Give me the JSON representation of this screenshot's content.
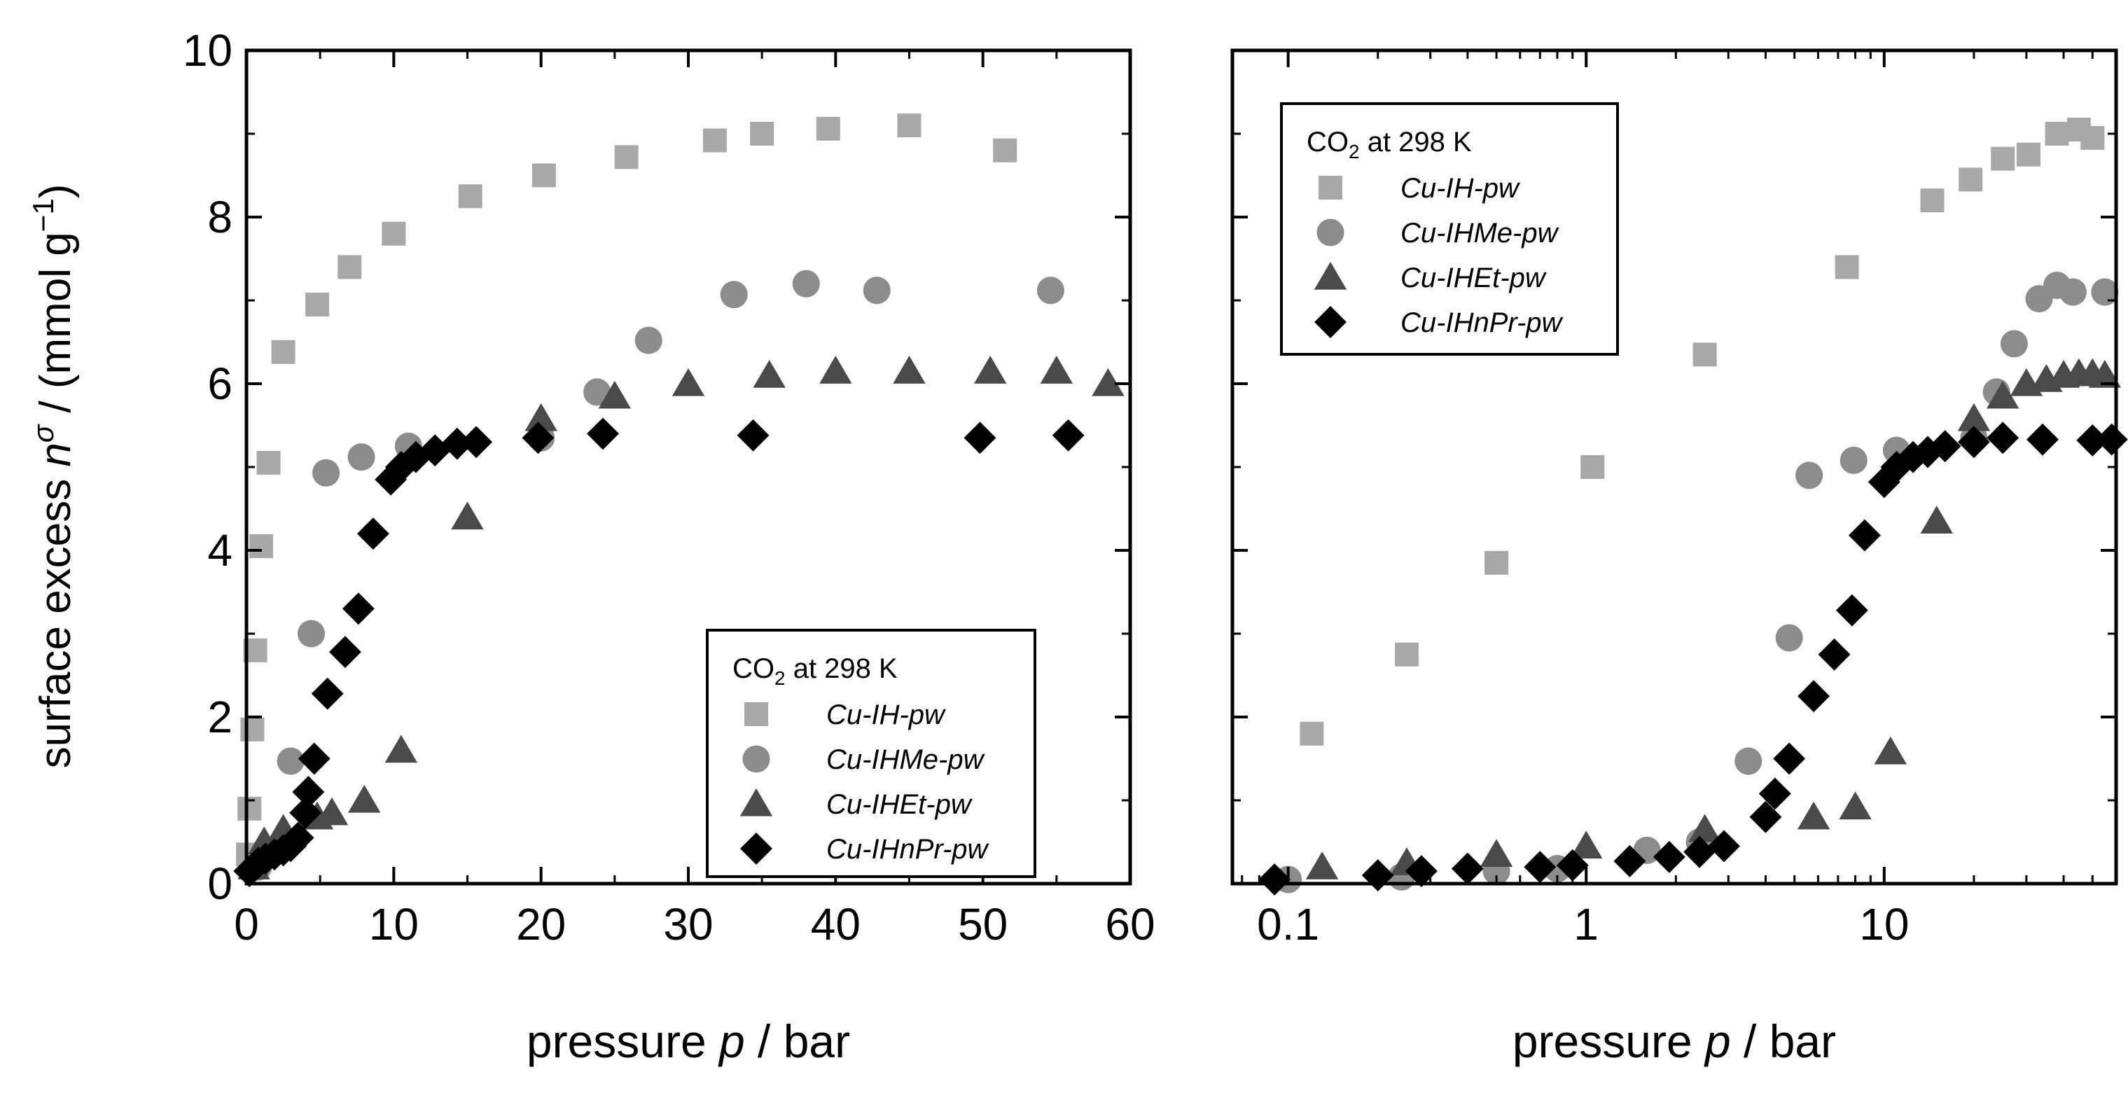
{
  "figure": {
    "y_axis_title_parts": [
      "surface excess ",
      "n",
      "σ",
      " / (mmol g",
      "−1",
      ")"
    ],
    "colors": {
      "Cu-IH-pw": "#a8a8a8",
      "Cu-IHMe-pw": "#8c8c8c",
      "Cu-IHEt-pw": "#4a4a4a",
      "Cu-IHnPr-pw": "#000000",
      "axis": "#000000"
    }
  },
  "chart_data": [
    {
      "type": "scatter",
      "name": "left-linear",
      "xscale": "linear",
      "xlim": [
        0,
        60
      ],
      "ylim": [
        0,
        10
      ],
      "xticks": [
        0,
        10,
        20,
        30,
        40,
        50,
        60
      ],
      "xtick_labels": [
        "0",
        "10",
        "20",
        "30",
        "40",
        "50",
        "60"
      ],
      "yticks": [
        0,
        2,
        4,
        6,
        8,
        10
      ],
      "ytick_labels": [
        "0",
        "2",
        "4",
        "6",
        "8",
        "10"
      ],
      "xlabel_parts": [
        "pressure ",
        "p",
        " / bar"
      ],
      "legend": {
        "title_parts": [
          "CO",
          "2",
          " at 298 K"
        ],
        "position": "bottom-right",
        "entries": [
          "Cu-IH-pw",
          "Cu-IHMe-pw",
          "Cu-IHEt-pw",
          "Cu-IHnPr-pw"
        ]
      },
      "series": [
        {
          "name": "Cu-IH-pw",
          "marker": "square",
          "x": [
            0.1,
            0.2,
            0.4,
            0.6,
            1.0,
            1.5,
            2.5,
            4.8,
            7.0,
            10.0,
            15.2,
            20.2,
            25.8,
            31.8,
            35.0,
            39.5,
            45.0,
            51.5
          ],
          "y": [
            0.35,
            0.9,
            1.85,
            2.8,
            4.05,
            5.05,
            6.38,
            6.95,
            7.4,
            7.8,
            8.25,
            8.5,
            8.72,
            8.92,
            9.0,
            9.06,
            9.1,
            8.8
          ]
        },
        {
          "name": "Cu-IHMe-pw",
          "marker": "circle",
          "x": [
            0.8,
            3.0,
            4.4,
            5.4,
            7.8,
            11.0,
            20.0,
            23.8,
            27.3,
            33.1,
            38.0,
            42.8,
            54.6
          ],
          "y": [
            0.2,
            1.47,
            3.0,
            4.93,
            5.12,
            5.25,
            5.35,
            5.9,
            6.52,
            7.07,
            7.2,
            7.12,
            7.12
          ]
        },
        {
          "name": "Cu-IHEt-pw",
          "marker": "triangle",
          "x": [
            0.5,
            1.2,
            2.5,
            4.8,
            5.8,
            8.0,
            10.5,
            15.0,
            20.0,
            25.0,
            30.0,
            35.5,
            40.0,
            45.0,
            50.5,
            55.0,
            58.5
          ],
          "y": [
            0.2,
            0.5,
            0.65,
            0.8,
            0.85,
            1.0,
            1.6,
            4.4,
            5.58,
            5.85,
            6.0,
            6.1,
            6.15,
            6.15,
            6.15,
            6.15,
            6.0
          ]
        },
        {
          "name": "Cu-IHnPr-pw",
          "marker": "diamond",
          "x": [
            0.2,
            0.5,
            0.8,
            1.3,
            1.9,
            2.5,
            3.0,
            3.5,
            4.0,
            4.2,
            4.6,
            5.5,
            6.7,
            7.6,
            8.6,
            9.8,
            10.5,
            11.5,
            12.8,
            14.3,
            15.6,
            19.8,
            24.2,
            34.4,
            49.8,
            55.8
          ],
          "y": [
            0.15,
            0.2,
            0.25,
            0.3,
            0.35,
            0.4,
            0.45,
            0.55,
            0.85,
            1.1,
            1.5,
            2.28,
            2.78,
            3.3,
            4.2,
            4.85,
            5.0,
            5.12,
            5.2,
            5.28,
            5.3,
            5.35,
            5.4,
            5.38,
            5.35,
            5.38
          ]
        }
      ]
    },
    {
      "type": "scatter",
      "name": "right-log",
      "xscale": "log",
      "xlim": [
        0.065,
        60
      ],
      "ylim": [
        0,
        10
      ],
      "xticks": [
        0.1,
        1,
        10
      ],
      "xtick_labels": [
        "0.1",
        "1",
        "10"
      ],
      "yticks": [
        0,
        2,
        4,
        6,
        8,
        10
      ],
      "ytick_labels": [],
      "xlabel_parts": [
        "pressure ",
        "p",
        " / bar"
      ],
      "legend": {
        "title_parts": [
          "CO",
          "2",
          " at 298 K"
        ],
        "position": "top-left",
        "entries": [
          "Cu-IH-pw",
          "Cu-IHMe-pw",
          "Cu-IHEt-pw",
          "Cu-IHnPr-pw"
        ]
      },
      "series": [
        {
          "name": "Cu-IH-pw",
          "marker": "square",
          "x": [
            0.12,
            0.25,
            0.5,
            1.05,
            2.5,
            7.5,
            14.5,
            19.5,
            25.0,
            30.5,
            38.0,
            45.0,
            50.0
          ],
          "y": [
            1.8,
            2.75,
            3.85,
            5.0,
            6.35,
            7.4,
            8.2,
            8.45,
            8.7,
            8.75,
            9.0,
            9.05,
            8.95
          ]
        },
        {
          "name": "Cu-IHMe-pw",
          "marker": "circle",
          "x": [
            0.1,
            0.24,
            0.5,
            0.8,
            1.6,
            2.4,
            3.5,
            4.8,
            5.6,
            7.9,
            11.0,
            20.0,
            23.8,
            27.3,
            33.1,
            38.0,
            43.0,
            55.0
          ],
          "y": [
            0.05,
            0.08,
            0.15,
            0.18,
            0.4,
            0.5,
            1.47,
            2.95,
            4.9,
            5.08,
            5.2,
            5.35,
            5.9,
            6.48,
            7.02,
            7.18,
            7.1,
            7.1
          ]
        },
        {
          "name": "Cu-IHEt-pw",
          "marker": "triangle",
          "x": [
            0.13,
            0.25,
            0.5,
            1.0,
            2.5,
            5.8,
            8.0,
            10.5,
            15.0,
            20.0,
            25.0,
            30.0,
            35.0,
            40.0,
            45.0,
            50.0,
            55.0
          ],
          "y": [
            0.2,
            0.25,
            0.35,
            0.45,
            0.65,
            0.8,
            0.92,
            1.58,
            4.35,
            5.58,
            5.85,
            6.0,
            6.05,
            6.1,
            6.12,
            6.12,
            6.1
          ]
        },
        {
          "name": "Cu-IHnPr-pw",
          "marker": "diamond",
          "x": [
            0.09,
            0.2,
            0.28,
            0.4,
            0.7,
            0.9,
            1.4,
            1.9,
            2.4,
            2.9,
            4.0,
            4.3,
            4.8,
            5.8,
            6.8,
            7.8,
            8.6,
            10.0,
            11.0,
            12.5,
            14.0,
            16.0,
            20.0,
            25.0,
            34.0,
            50.0,
            58.0
          ],
          "y": [
            0.05,
            0.1,
            0.15,
            0.18,
            0.2,
            0.22,
            0.27,
            0.32,
            0.38,
            0.45,
            0.8,
            1.08,
            1.5,
            2.25,
            2.75,
            3.28,
            4.18,
            4.82,
            5.0,
            5.12,
            5.18,
            5.25,
            5.3,
            5.35,
            5.33,
            5.32,
            5.33
          ]
        }
      ]
    }
  ]
}
